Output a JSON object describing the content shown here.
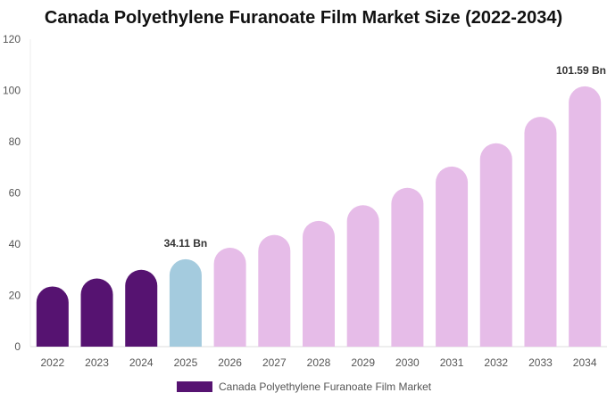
{
  "chart_data": {
    "type": "bar",
    "title": "Canada Polyethylene Furanoate Film Market Size (2022-2034)",
    "xlabel": "",
    "ylabel": "",
    "categories": [
      "2022",
      "2023",
      "2024",
      "2025",
      "2026",
      "2027",
      "2028",
      "2029",
      "2030",
      "2031",
      "2032",
      "2033",
      "2034"
    ],
    "series": [
      {
        "name": "Canada Polyethylene Furanoate Film Market",
        "values": [
          23.5,
          26.6,
          30.0,
          34.11,
          38.6,
          43.6,
          49.1,
          55.2,
          62.0,
          70.3,
          79.4,
          89.7,
          101.59
        ]
      }
    ],
    "ylim": [
      0,
      120
    ],
    "yticks": [
      0,
      20,
      40,
      60,
      80,
      100,
      120
    ],
    "data_labels": [
      {
        "index": 3,
        "text": "34.11 Bn"
      },
      {
        "index": 12,
        "text": "101.59 Bn"
      }
    ],
    "bar_colors": {
      "historical": "#561371",
      "current": "#a4cbde",
      "forecast": "#e6bce8"
    },
    "color_groups": [
      "historical",
      "historical",
      "historical",
      "current",
      "forecast",
      "forecast",
      "forecast",
      "forecast",
      "forecast",
      "forecast",
      "forecast",
      "forecast",
      "forecast"
    ],
    "legend_color": "#561371",
    "grid": false,
    "legend_position": "bottom-center"
  }
}
